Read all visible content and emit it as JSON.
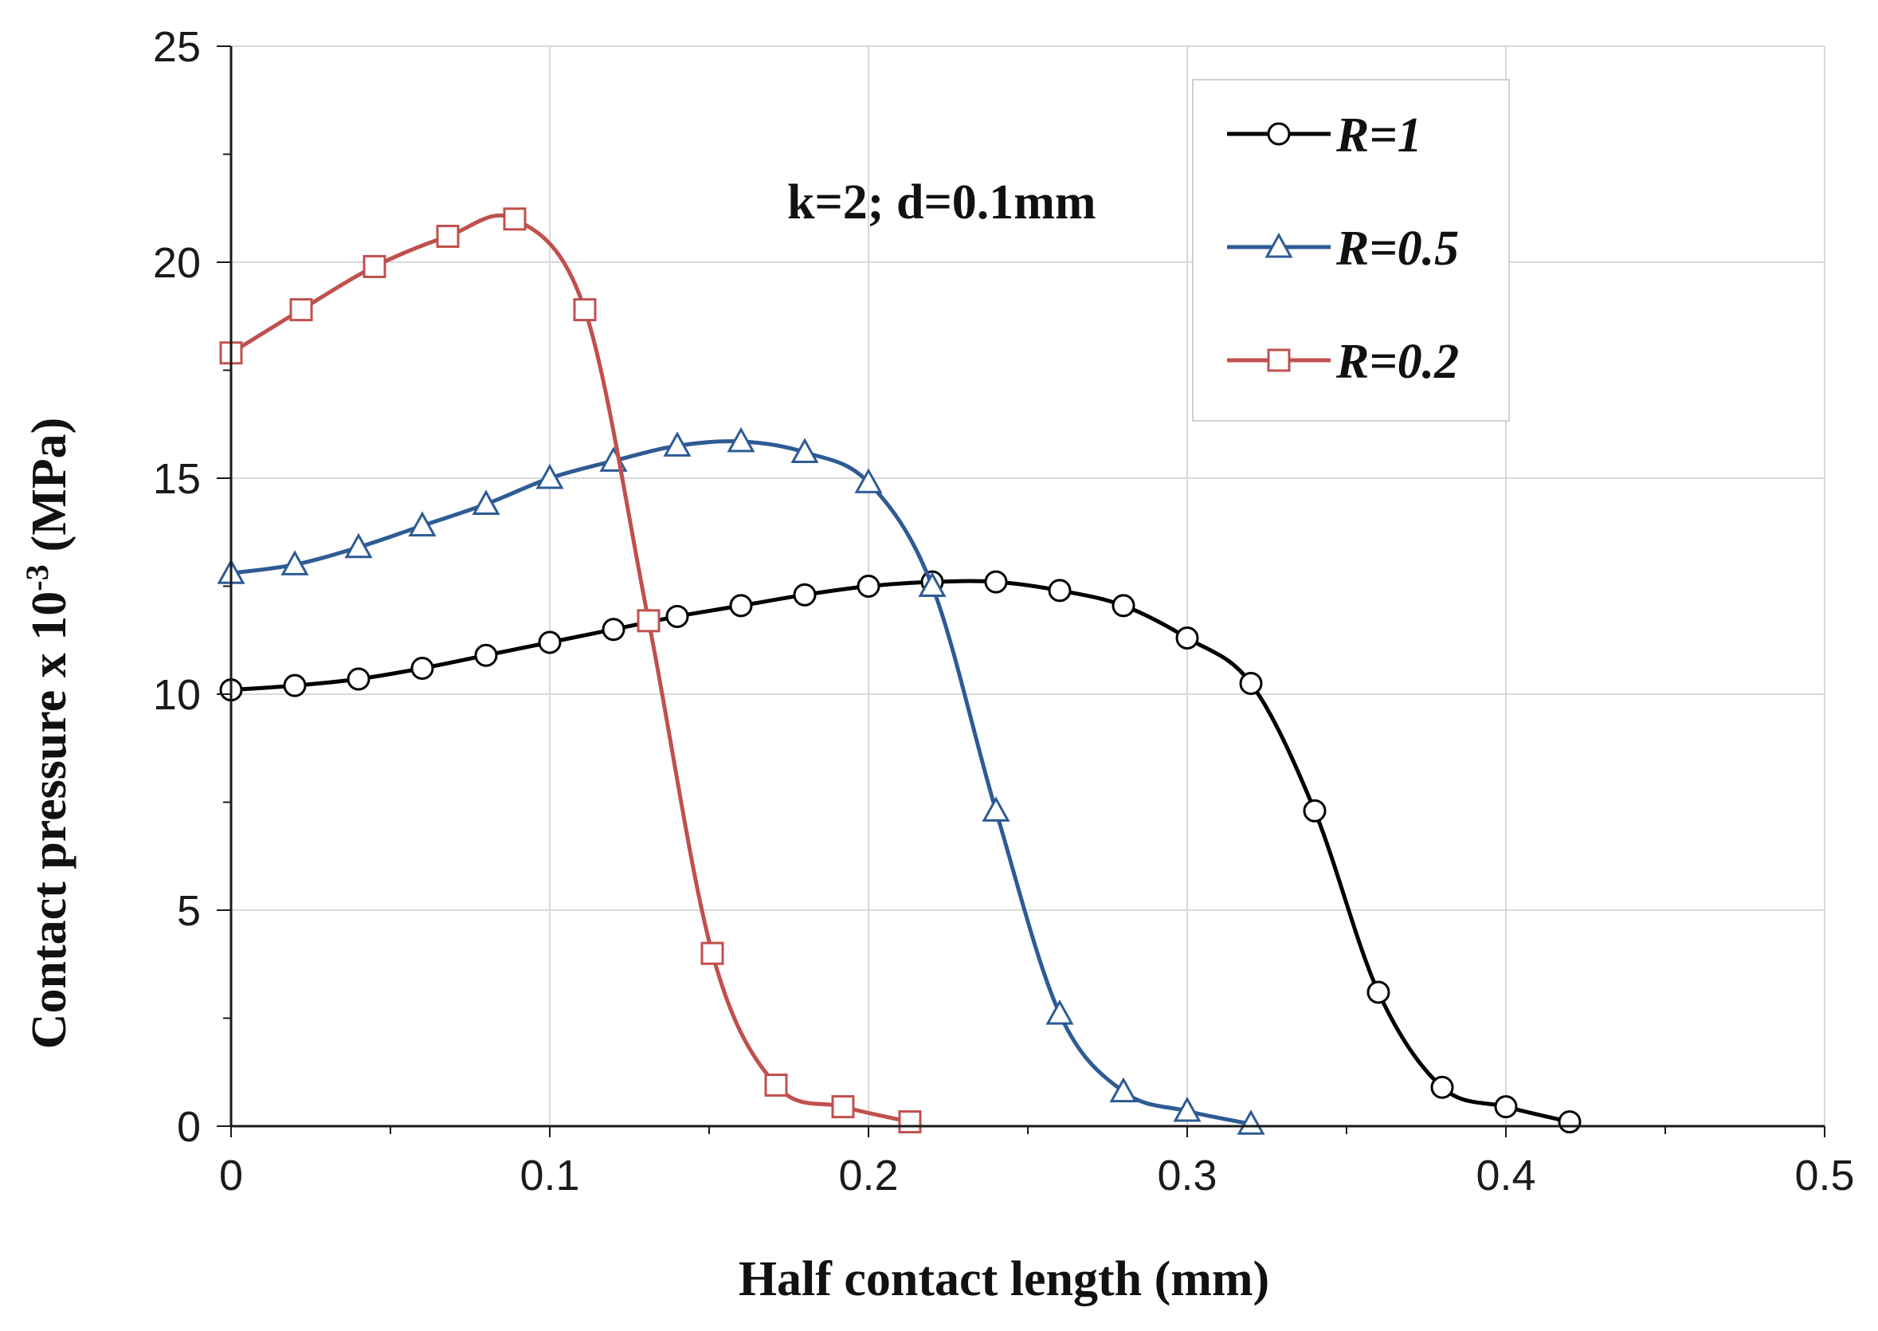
{
  "chart_data": {
    "type": "line",
    "title": "",
    "xlabel": "Half contact length (mm)",
    "ylabel": "Contact pressure x 10",
    "ylabel_exponent": "-3",
    "ylabel_unit": "(MPa)",
    "xlim": [
      0,
      0.5
    ],
    "ylim": [
      0,
      25
    ],
    "xticks": [
      0,
      0.1,
      0.2,
      0.3,
      0.4,
      0.5
    ],
    "xtick_labels": [
      "0",
      "0.1",
      "0.2",
      "0.3",
      "0.4",
      "0.5"
    ],
    "yticks": [
      0,
      5,
      10,
      15,
      20,
      25
    ],
    "ytick_labels": [
      "0",
      "5",
      "10",
      "15",
      "20",
      "25"
    ],
    "grid": true,
    "legend_position": "top-right",
    "annotation": "k=2; d=0.1mm",
    "series": [
      {
        "name": "R=1",
        "color": "#000000",
        "marker": "circle",
        "x": [
          0,
          0.02,
          0.04,
          0.06,
          0.08,
          0.1,
          0.12,
          0.14,
          0.16,
          0.18,
          0.2,
          0.22,
          0.24,
          0.26,
          0.28,
          0.3,
          0.32,
          0.34,
          0.36,
          0.38,
          0.4,
          0.42
        ],
        "y": [
          10.1,
          10.2,
          10.35,
          10.6,
          10.9,
          11.2,
          11.5,
          11.8,
          12.05,
          12.3,
          12.5,
          12.6,
          12.6,
          12.4,
          12.05,
          11.3,
          10.25,
          7.3,
          3.1,
          0.9,
          0.45,
          0.1
        ]
      },
      {
        "name": "R=0.5",
        "color": "#2e5b94",
        "marker": "triangle",
        "x": [
          0,
          0.02,
          0.04,
          0.06,
          0.08,
          0.1,
          0.12,
          0.14,
          0.16,
          0.18,
          0.2,
          0.22,
          0.24,
          0.26,
          0.28,
          0.3,
          0.32
        ],
        "y": [
          12.8,
          13.0,
          13.4,
          13.9,
          14.4,
          15.0,
          15.4,
          15.75,
          15.85,
          15.6,
          14.9,
          12.5,
          7.3,
          2.6,
          0.8,
          0.35,
          0.05
        ]
      },
      {
        "name": "R=0.2",
        "color": "#c0504d",
        "marker": "square",
        "x": [
          0,
          0.022,
          0.045,
          0.068,
          0.089,
          0.111,
          0.131,
          0.151,
          0.171,
          0.192,
          0.213
        ],
        "y": [
          17.9,
          18.9,
          19.9,
          20.6,
          21.0,
          18.9,
          11.7,
          4.0,
          0.95,
          0.45,
          0.1
        ]
      }
    ]
  }
}
